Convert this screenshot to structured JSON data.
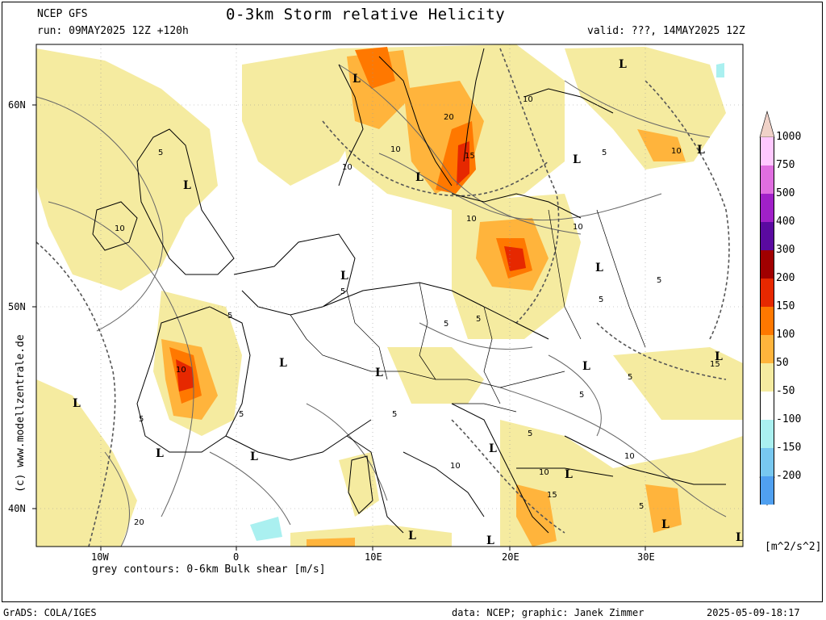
{
  "header": {
    "model": "NCEP GFS",
    "run": "run: 09MAY2025 12Z +120h",
    "title": "0-3km Storm relative Helicity",
    "valid": "valid: ???, 14MAY2025 12Z"
  },
  "axes": {
    "lat_labels": [
      "60N",
      "50N",
      "40N"
    ],
    "lon_labels": [
      "10W",
      "0",
      "10E",
      "20E",
      "30E"
    ]
  },
  "contour_note": "grey contours: 0-6km Bulk shear [m/s]",
  "side_credit": "(c) www.modellzentrale.de",
  "footer": {
    "left": "GrADS: COLA/IGES",
    "middle": "data: NCEP; graphic: Janek Zimmer",
    "right": "2025-05-09-18:17"
  },
  "legend": {
    "unit": "[m^2/s^2]",
    "items": [
      {
        "label": "1000",
        "color": "#ffc8ff"
      },
      {
        "label": "750",
        "color": "#e06ee0"
      },
      {
        "label": "500",
        "color": "#a020c8"
      },
      {
        "label": "400",
        "color": "#5a0aa0"
      },
      {
        "label": "300",
        "color": "#a00000"
      },
      {
        "label": "200",
        "color": "#e62800"
      },
      {
        "label": "150",
        "color": "#ff7800"
      },
      {
        "label": "100",
        "color": "#ffb43c"
      },
      {
        "label": "50",
        "color": "#f5eba0"
      },
      {
        "label": "-50",
        "color": "#ffffff"
      },
      {
        "label": "-100",
        "color": "#aaf0f0"
      },
      {
        "label": "-150",
        "color": "#78c8f0"
      },
      {
        "label": "-200",
        "color": "#50a0f0"
      }
    ],
    "below_color": "#1e78e6",
    "above_color": "#f0d2c8"
  },
  "map_labels": {
    "lows": [
      "L",
      "L",
      "L",
      "L",
      "L",
      "L",
      "L",
      "L",
      "L",
      "L",
      "L",
      "L",
      "L",
      "L",
      "L",
      "L",
      "L",
      "L",
      "L",
      "L",
      "L"
    ],
    "contour_values": [
      "10",
      "20",
      "15",
      "10",
      "10",
      "10",
      "10",
      "5",
      "10",
      "5",
      "5",
      "5",
      "5",
      "10",
      "5",
      "5",
      "5",
      "5",
      "5",
      "5",
      "10",
      "10",
      "10",
      "5",
      "15",
      "5",
      "15",
      "5",
      "20",
      "5",
      "10"
    ]
  }
}
